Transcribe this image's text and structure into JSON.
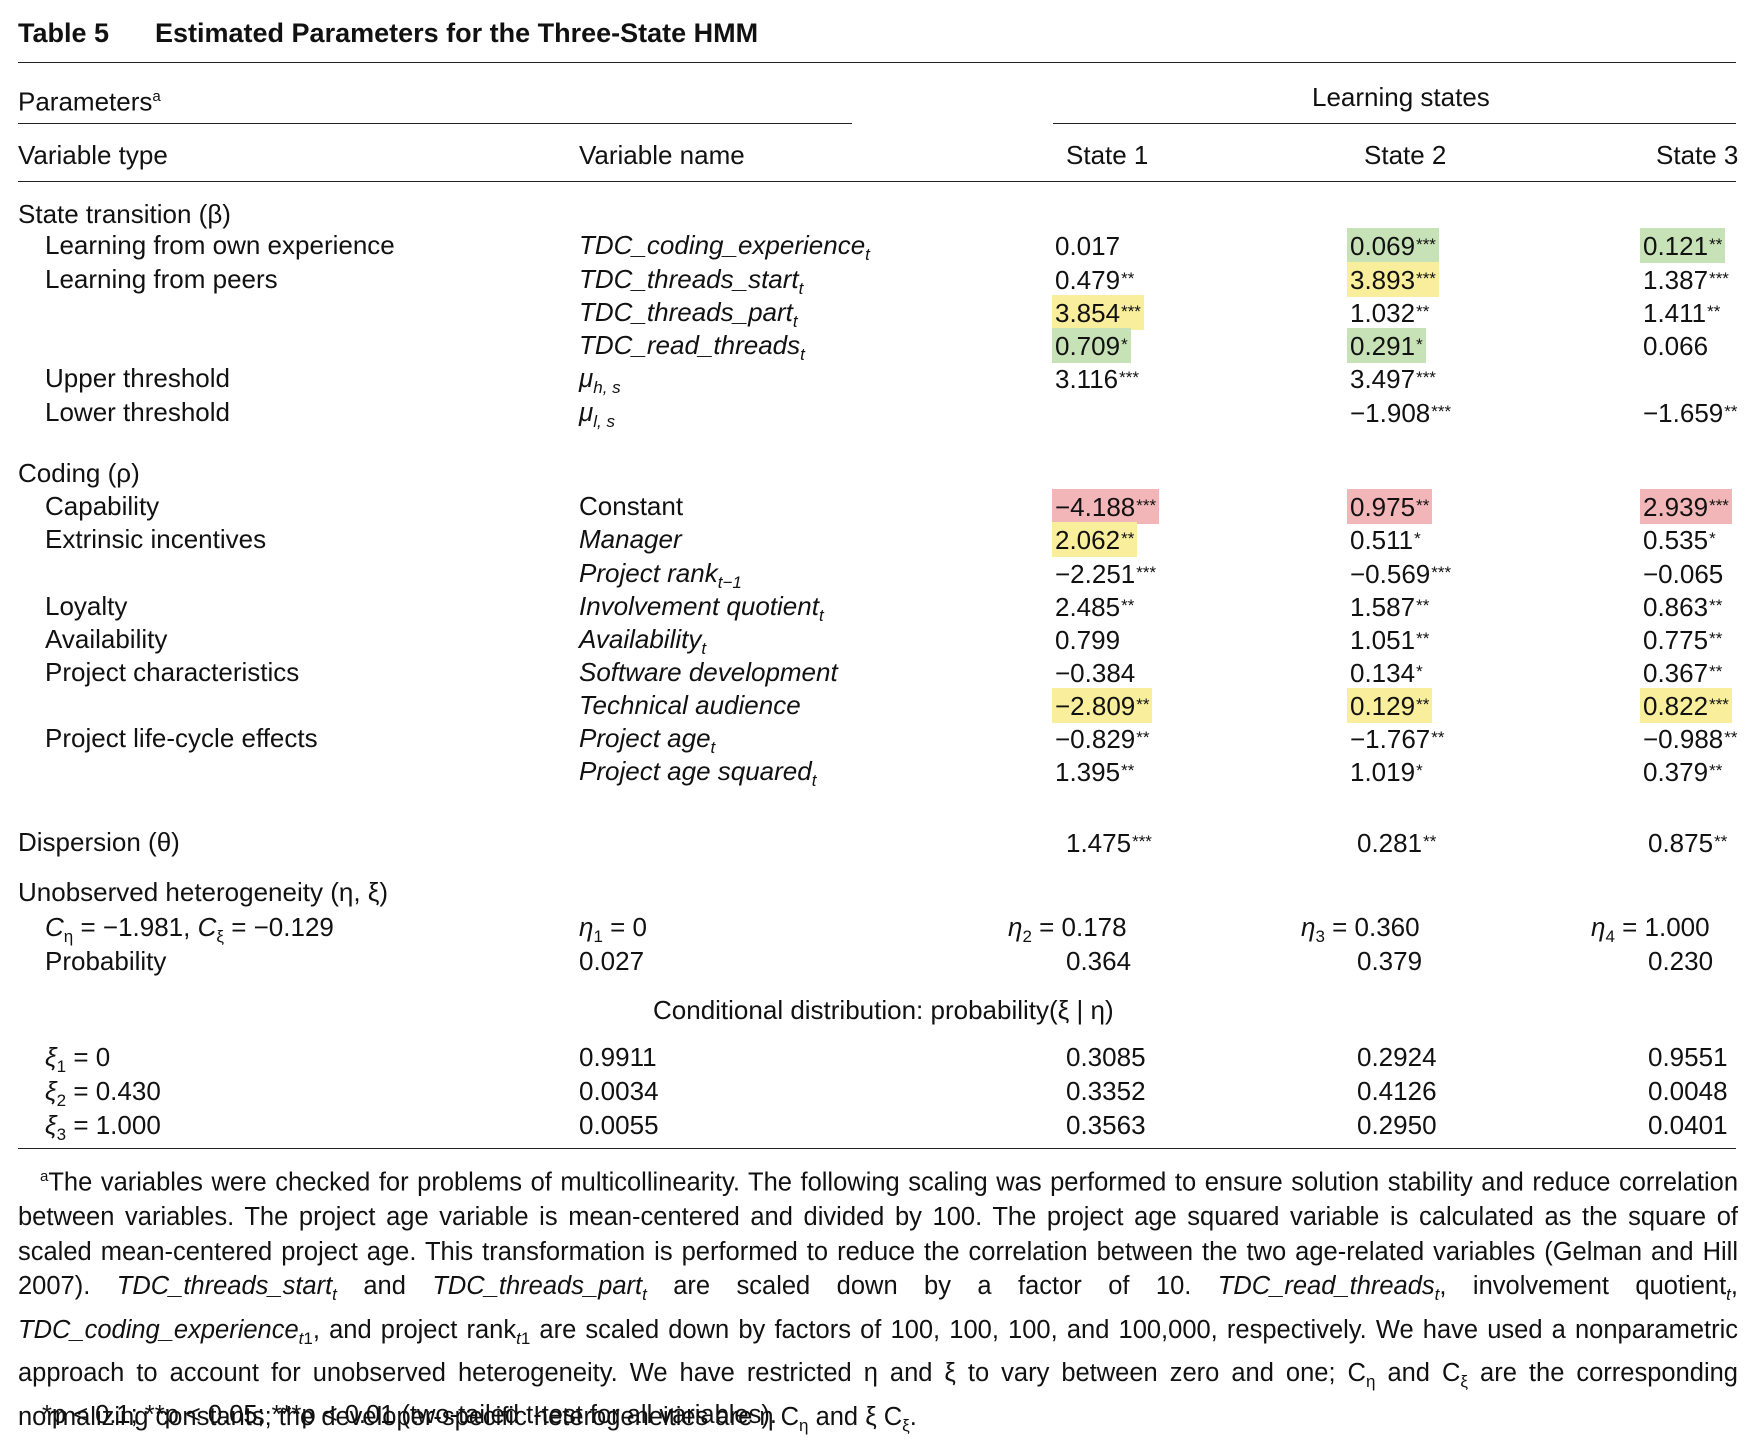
{
  "table": {
    "number": "Table 5",
    "title": "Estimated Parameters for the Three-State HMM",
    "header": {
      "parameters": "Parameters",
      "parameters_sup": "a",
      "learning_states": "Learning states",
      "variable_type": "Variable type",
      "variable_name": "Variable name",
      "state1": "State 1",
      "state2": "State 2",
      "state3": "State 3"
    },
    "sections": {
      "state_transition": "State transition (β)",
      "coding": "Coding (ρ)",
      "dispersion": "Dispersion (θ)",
      "unobserved": "Unobserved heterogeneity (η, ξ)",
      "conditional": "Conditional distribution: probability(ξ | η)"
    },
    "rows": {
      "own": {
        "type": "Learning from own experience",
        "name": "TDC_coding_experience",
        "sub": "t",
        "s1": "0.017",
        "s1s": "",
        "s2": "0.069",
        "s2s": "***",
        "s3": "0.121",
        "s3s": "**"
      },
      "start": {
        "type": "Learning from peers",
        "name": "TDC_threads_start",
        "sub": "t",
        "s1": "0.479",
        "s1s": "**",
        "s2": "3.893",
        "s2s": "***",
        "s3": "1.387",
        "s3s": "***"
      },
      "part": {
        "type": "",
        "name": "TDC_threads_part",
        "sub": "t",
        "s1": "3.854",
        "s1s": "***",
        "s2": "1.032",
        "s2s": "**",
        "s3": "1.411",
        "s3s": "**"
      },
      "read": {
        "type": "",
        "name": "TDC_read_threads",
        "sub": "t",
        "s1": "0.709",
        "s1s": "*",
        "s2": "0.291",
        "s2s": "*",
        "s3": "0.066",
        "s3s": ""
      },
      "upper": {
        "type": "Upper threshold",
        "name": "μ",
        "sub": "h, s",
        "s1": "3.116",
        "s1s": "***",
        "s2": "3.497",
        "s2s": "***",
        "s3": "",
        "s3s": ""
      },
      "lower": {
        "type": "Lower threshold",
        "name": "μ",
        "sub": "l, s",
        "s1": "",
        "s1s": "",
        "s2": "−1.908",
        "s2s": "***",
        "s3": "−1.659",
        "s3s": "**"
      },
      "capability": {
        "type": "Capability",
        "name": "Constant",
        "sub": "",
        "s1": "−4.188",
        "s1s": "***",
        "s2": "0.975",
        "s2s": "**",
        "s3": "2.939",
        "s3s": "***"
      },
      "manager": {
        "type": "Extrinsic incentives",
        "name": "Manager",
        "sub": "",
        "s1": "2.062",
        "s1s": "**",
        "s2": "0.511",
        "s2s": "*",
        "s3": "0.535",
        "s3s": "*"
      },
      "rank": {
        "type": "",
        "name": "Project rank",
        "sub": "t−1",
        "s1": "−2.251",
        "s1s": "***",
        "s2": "−0.569",
        "s2s": "***",
        "s3": "−0.065",
        "s3s": ""
      },
      "loyalty": {
        "type": "Loyalty",
        "name": "Involvement quotient",
        "sub": "t",
        "s1": "2.485",
        "s1s": "**",
        "s2": "1.587",
        "s2s": "**",
        "s3": "0.863",
        "s3s": "**"
      },
      "availability": {
        "type": "Availability",
        "name": "Availability",
        "sub": "t",
        "s1": "0.799",
        "s1s": "",
        "s2": "1.051",
        "s2s": "**",
        "s3": "0.775",
        "s3s": "**"
      },
      "software": {
        "type": "Project characteristics",
        "name": "Software development",
        "sub": "",
        "s1": "−0.384",
        "s1s": "",
        "s2": "0.134",
        "s2s": "*",
        "s3": "0.367",
        "s3s": "**"
      },
      "technical": {
        "type": "",
        "name": "Technical audience",
        "sub": "",
        "s1": "−2.809",
        "s1s": "**",
        "s2": "0.129",
        "s2s": "**",
        "s3": "0.822",
        "s3s": "***"
      },
      "age": {
        "type": "Project life-cycle effects",
        "name": "Project age",
        "sub": "t",
        "s1": "−0.829",
        "s1s": "**",
        "s2": "−1.767",
        "s2s": "**",
        "s3": "−0.988",
        "s3s": "**"
      },
      "agesq": {
        "type": "",
        "name": "Project age squared",
        "sub": "t",
        "s1": "1.395",
        "s1s": "**",
        "s2": "1.019",
        "s2s": "*",
        "s3": "0.379",
        "s3s": "**"
      },
      "dispersion": {
        "s1": "1.475",
        "s1s": "***",
        "s2": "0.281",
        "s2s": "**",
        "s3": "0.875",
        "s3s": "**"
      }
    },
    "heterogeneity": {
      "constants": "C",
      "c_eta": "η",
      "c_eta_val": " = −1.981, ",
      "c_xi": "ξ",
      "c_xi_val": " = −0.129",
      "eta1": "η",
      "eta1_sub": "1",
      "eta1_val": " = 0",
      "eta2": "η",
      "eta2_sub": "2",
      "eta2_val": " = 0.178",
      "eta3": "η",
      "eta3_sub": "3",
      "eta3_val": " = 0.360",
      "eta4": "η",
      "eta4_sub": "4",
      "eta4_val": " = 1.000",
      "prob_label": "Probability",
      "prob": [
        "0.027",
        "0.364",
        "0.379",
        "0.230"
      ],
      "xi_rows": [
        {
          "label": "ξ",
          "sub": "1",
          "val": " = 0",
          "p": [
            "0.9911",
            "0.3085",
            "0.2924",
            "0.9551"
          ]
        },
        {
          "label": "ξ",
          "sub": "2",
          "val": " = 0.430",
          "p": [
            "0.0034",
            "0.3352",
            "0.4126",
            "0.0048"
          ]
        },
        {
          "label": "ξ",
          "sub": "3",
          "val": " = 1.000",
          "p": [
            "0.0055",
            "0.3563",
            "0.2950",
            "0.0401"
          ]
        }
      ]
    },
    "footnote": {
      "marker": "a",
      "p1": "The variables were checked for problems of multicollinearity. The following scaling was performed to ensure solution stability and reduce correlation between variables. The project age variable is mean-centered and divided by 100. The project age squared variable is calculated as the square of scaled mean-centered project age. This transformation is performed to reduce the correlation between the two age-related variables (Gelman and Hill 2007).",
      "v_start": "TDC_threads_start",
      "and": " and ",
      "v_part": "TDC_threads_part",
      "p2": " are scaled down by a factor of 10. ",
      "v_read": "TDC_read_threads",
      "p3": ", involvement quotient",
      "v_coding": "TDC_coding_experience",
      "p4": ", and project rank",
      "p5": " are scaled down by factors of 100, 100, 100, and 100,000, respectively. We have used a nonparametric approach to account for unobserved heterogeneity. We have restricted η and ξ to vary between zero and one; C",
      "p6": " and C",
      "p7": " are the corresponding normalizing constants; the developer-specific heterogeneities are η C",
      "p8": " and ξ C",
      "p9": ".",
      "sig": "*p < 0.1; **p < 0.05; ***p < 0.01 (two-tailed t-test for all variables)."
    }
  }
}
